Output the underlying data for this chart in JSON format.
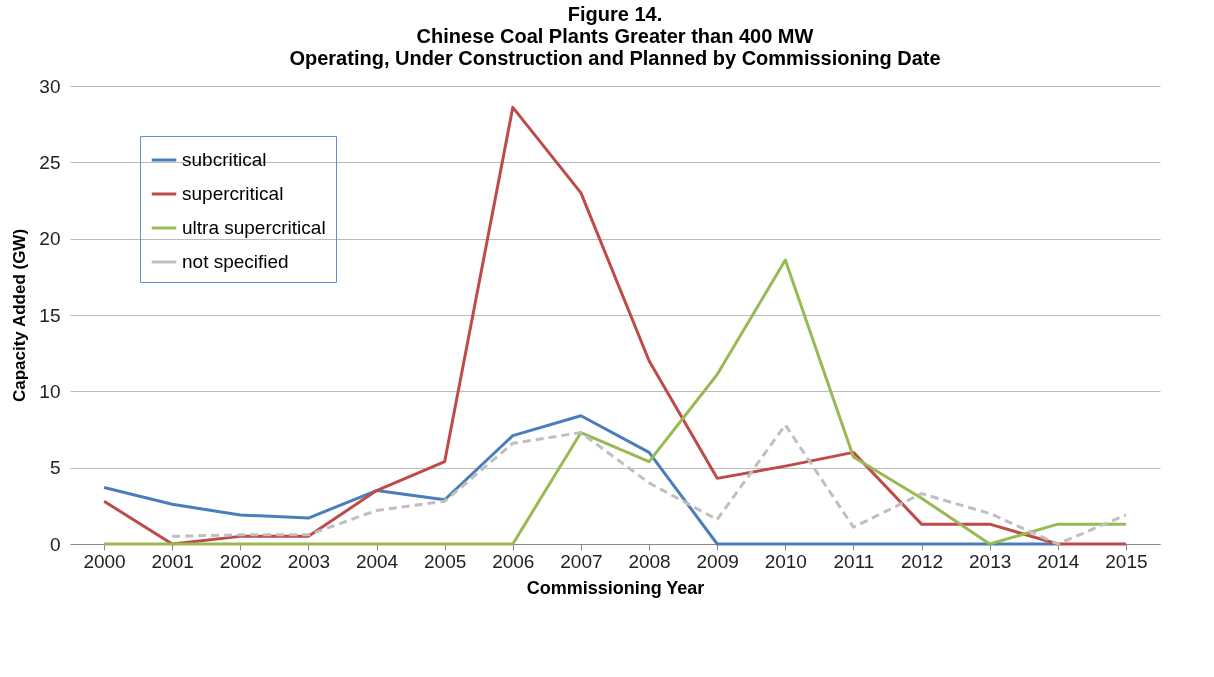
{
  "chart_data": {
    "type": "line",
    "title": "Figure 14.",
    "subtitle": "Chinese Coal Plants Greater than 400 MW\nOperating, Under Construction and Planned by Commissioning Date",
    "xlabel": "Commissioning Year",
    "ylabel": "Capacity Added (GW)",
    "categories": [
      "2000",
      "2001",
      "2002",
      "2003",
      "2004",
      "2005",
      "2006",
      "2007",
      "2008",
      "2009",
      "2010",
      "2011",
      "2012",
      "2013",
      "2014",
      "2015"
    ],
    "series": [
      {
        "name": "subcritical",
        "color": "#4a7ebb",
        "values": [
          3.7,
          2.6,
          1.9,
          1.7,
          3.5,
          2.9,
          7.1,
          8.4,
          6.0,
          0,
          0,
          0,
          0,
          0,
          0,
          null
        ]
      },
      {
        "name": "supercritical",
        "color": "#be4b48",
        "values": [
          2.8,
          0,
          0.5,
          0.5,
          3.5,
          5.4,
          28.6,
          23.0,
          12.0,
          4.3,
          5.1,
          6.0,
          1.3,
          1.3,
          0,
          0
        ]
      },
      {
        "name": "ultra supercritical",
        "color": "#98b954",
        "values": [
          0,
          0,
          0,
          0,
          0,
          0,
          0,
          7.3,
          5.4,
          11.1,
          18.6,
          5.7,
          3.0,
          0,
          1.3,
          1.3
        ]
      },
      {
        "name": "not specified",
        "color": "#bfbfbf",
        "line_style": "dashed",
        "values": [
          null,
          0.5,
          0.6,
          0.6,
          2.2,
          2.8,
          6.6,
          7.3,
          4.0,
          1.6,
          7.8,
          1.1,
          3.3,
          2.0,
          0,
          1.9
        ]
      }
    ],
    "ylim": [
      0,
      30
    ],
    "yticks": [
      0,
      5,
      10,
      15,
      20,
      25,
      30
    ],
    "grid": "y",
    "legend": "top left",
    "marker": "none"
  }
}
